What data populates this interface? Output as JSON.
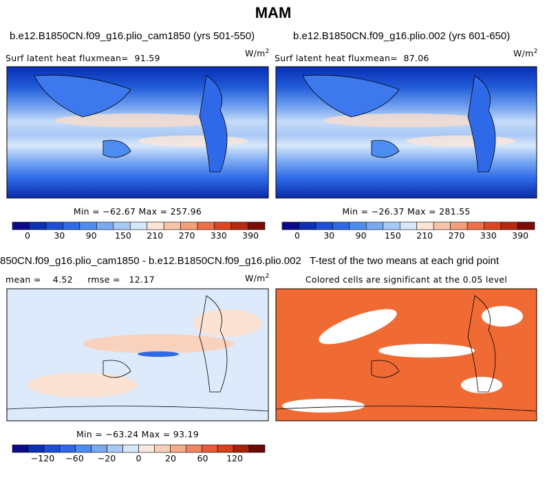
{
  "title": "MAM",
  "panels": [
    {
      "title": "b.e12.B1850CN.f09_g16.plio_cam1850 (yrs 501-550)",
      "subtitle": "Surf latent heat fluxmean=  91.59",
      "units": "W/m",
      "units_sup": "2",
      "stats": "Min = −62.67 Max = 257.96",
      "colorbar_labels": [
        "0",
        "30",
        "90",
        "150",
        "210",
        "270",
        "330",
        "390"
      ]
    },
    {
      "title": "b.e12.B1850CN.f09_g16.plio.002 (yrs 601-650)",
      "subtitle": "Surf latent heat fluxmean=  87.06",
      "units": "W/m",
      "units_sup": "2",
      "stats": "Min = −26.37 Max = 281.55",
      "colorbar_labels": [
        "0",
        "30",
        "90",
        "150",
        "210",
        "270",
        "330",
        "390"
      ]
    },
    {
      "title": "850CN.f09_g16.plio_cam1850 - b.e12.B1850CN.f09_g16.plio.002",
      "subtitle": "mean =    4.52     rmse =   12.17",
      "units": "W/m",
      "units_sup": "2",
      "stats": "Min = −63.24 Max = 93.19",
      "colorbar_labels": [
        "−120",
        "−60",
        "−20",
        "0",
        "20",
        "60",
        "120"
      ]
    },
    {
      "title": "T-test of the two means at each grid point",
      "subtitle": "Colored cells are significant at the 0.05 level"
    }
  ]
}
